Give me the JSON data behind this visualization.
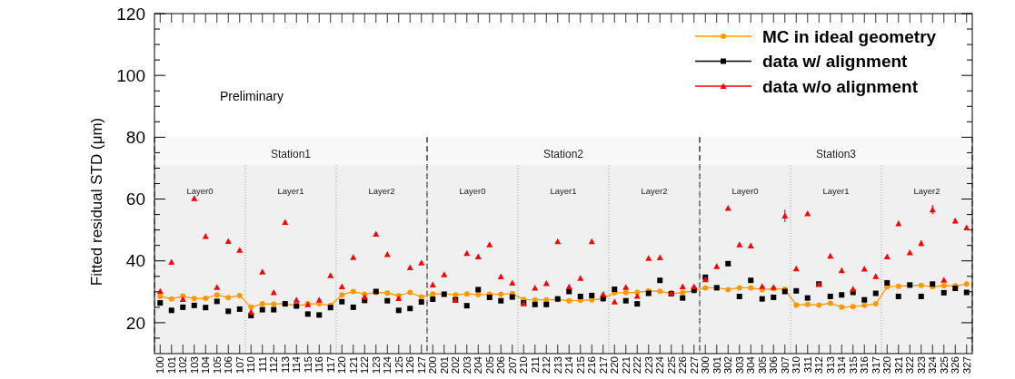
{
  "chart_data": {
    "type": "line",
    "ylabel": "Fitted residual STD (μm)",
    "categories": [
      "100",
      "101",
      "102",
      "103",
      "104",
      "105",
      "106",
      "107",
      "110",
      "111",
      "112",
      "113",
      "114",
      "115",
      "116",
      "117",
      "120",
      "121",
      "122",
      "123",
      "124",
      "125",
      "126",
      "127",
      "200",
      "201",
      "202",
      "203",
      "204",
      "205",
      "206",
      "207",
      "210",
      "211",
      "212",
      "213",
      "214",
      "215",
      "216",
      "217",
      "220",
      "221",
      "222",
      "223",
      "224",
      "225",
      "226",
      "227",
      "300",
      "301",
      "302",
      "303",
      "304",
      "305",
      "306",
      "307",
      "310",
      "311",
      "312",
      "313",
      "314",
      "315",
      "316",
      "317",
      "320",
      "321",
      "322",
      "323",
      "324",
      "325",
      "326",
      "327"
    ],
    "series": [
      {
        "name": "MC in ideal geometry",
        "marker": "circle",
        "color": "#ff9900",
        "values": [
          28.5,
          27.7,
          28.6,
          27.8,
          27.9,
          29.0,
          28.1,
          28.8,
          25.0,
          26.1,
          26.0,
          26.2,
          25.4,
          26.1,
          26.1,
          25.6,
          29.0,
          30.1,
          29.2,
          29.8,
          29.6,
          28.7,
          29.8,
          28.3,
          29.3,
          29.3,
          29.0,
          29.3,
          29.1,
          29.2,
          29.2,
          29.4,
          27.5,
          27.4,
          27.4,
          27.5,
          27.1,
          27.2,
          27.4,
          27.7,
          29.7,
          29.7,
          29.8,
          30.3,
          30.2,
          29.4,
          29.8,
          30.3,
          31.3,
          31.3,
          30.7,
          31.3,
          31.3,
          30.7,
          31.0,
          30.8,
          25.7,
          25.9,
          25.7,
          26.3,
          25.0,
          25.2,
          25.6,
          26.1,
          31.6,
          31.8,
          32.0,
          32.1,
          31.6,
          32.0,
          31.9,
          32.5
        ]
      },
      {
        "name": "data w/ alignment",
        "type": "scatter",
        "marker": "square",
        "color": "#000000",
        "values": [
          26.4,
          24.0,
          25.0,
          25.6,
          24.9,
          26.9,
          23.7,
          24.4,
          22.3,
          24.2,
          24.2,
          26.1,
          25.4,
          22.8,
          22.5,
          24.9,
          26.8,
          25.0,
          27.2,
          30.1,
          27.1,
          24.0,
          24.6,
          26.7,
          27.6,
          29.2,
          27.4,
          25.5,
          30.7,
          28.2,
          27.1,
          28.3,
          26.4,
          25.9,
          25.9,
          27.7,
          30.1,
          28.5,
          28.8,
          27.8,
          30.8,
          27.1,
          26.1,
          29.5,
          33.7,
          29.4,
          28.0,
          30.5,
          34.7,
          31.3,
          39.1,
          28.5,
          33.7,
          27.7,
          28.2,
          30.1,
          30.3,
          28.0,
          32.5,
          28.5,
          29.0,
          29.8,
          27.4,
          29.5,
          32.9,
          28.5,
          32.2,
          28.5,
          32.5,
          29.7,
          31.1,
          29.8
        ]
      },
      {
        "name": "data w/o alignment",
        "type": "scatter",
        "marker": "triangle",
        "color": "#ff0000",
        "values": [
          30.2,
          39.6,
          27.6,
          60.2,
          48.0,
          31.5,
          46.4,
          43.5,
          23.5,
          36.5,
          29.8,
          52.5,
          27.4,
          25.9,
          27.4,
          35.3,
          31.7,
          41.2,
          28.3,
          48.7,
          42.1,
          27.9,
          37.9,
          39.4,
          32.3,
          35.6,
          27.4,
          42.5,
          41.4,
          45.3,
          34.9,
          32.9,
          26.2,
          31.3,
          32.7,
          46.3,
          31.6,
          34.4,
          46.3,
          29.2,
          26.8,
          31.5,
          28.6,
          40.9,
          41.1,
          29.6,
          31.7,
          31.7,
          34.0,
          38.2,
          57.1,
          45.3,
          44.9,
          31.8,
          31.5,
          54.6,
          37.5,
          55.3,
          32.5,
          41.6,
          36.9,
          30.9,
          37.4,
          35.0,
          41.4,
          52.1,
          42.7,
          45.7,
          56.6,
          33.8,
          53.0,
          50.8
        ],
        "errors": [
          null,
          null,
          null,
          0.8,
          null,
          null,
          null,
          null,
          null,
          null,
          null,
          null,
          null,
          null,
          null,
          null,
          null,
          null,
          null,
          null,
          null,
          null,
          null,
          null,
          null,
          null,
          null,
          null,
          null,
          null,
          null,
          null,
          null,
          null,
          null,
          null,
          null,
          null,
          null,
          null,
          null,
          null,
          null,
          null,
          null,
          null,
          null,
          null,
          null,
          null,
          null,
          null,
          null,
          null,
          null,
          2,
          null,
          null,
          null,
          null,
          null,
          null,
          null,
          null,
          null,
          null,
          null,
          1,
          1.5,
          null,
          0.8,
          null
        ]
      }
    ],
    "ylim": [
      10,
      120
    ],
    "yticks": [
      {
        "value": 15,
        "label": null
      },
      20,
      {
        "value": 25,
        "label": null
      },
      {
        "value": 30,
        "label": null
      },
      {
        "value": 35,
        "label": null
      },
      40,
      {
        "value": 45,
        "label": null
      },
      {
        "value": 50,
        "label": null
      },
      {
        "value": 55,
        "label": null
      },
      60,
      {
        "value": 65,
        "label": null
      },
      {
        "value": 70,
        "label": null
      },
      {
        "value": 75,
        "label": null
      },
      80,
      {
        "value": 85,
        "label": null
      },
      {
        "value": 90,
        "label": null
      },
      {
        "value": 95,
        "label": null
      },
      100,
      {
        "value": 105,
        "label": null
      },
      {
        "value": 110,
        "label": null
      },
      {
        "value": 115,
        "label": null
      },
      120
    ],
    "bands": [
      {
        "axis": "x",
        "from": "100",
        "to": "127",
        "label": "Station1",
        "color": "#555555"
      },
      {
        "axis": "x",
        "from": "200",
        "to": "227",
        "label": "Station2",
        "color": "#555555"
      },
      {
        "axis": "x",
        "from": "300",
        "to": "327",
        "label": "Station3",
        "color": "#555555"
      },
      {
        "axis": "x",
        "from": "100",
        "to": "107",
        "label": "Layer0",
        "color": "#bbbbbb"
      },
      {
        "axis": "x",
        "from": "110",
        "to": "117",
        "label": "Layer1",
        "color": "#bbbbbb"
      },
      {
        "axis": "x",
        "from": "120",
        "to": "127",
        "label": "Layer2",
        "color": "#bbbbbb"
      },
      {
        "axis": "x",
        "from": "200",
        "to": "207",
        "label": "Layer0",
        "color": "#bbbbbb"
      },
      {
        "axis": "x",
        "from": "210",
        "to": "217",
        "label": "Layer1",
        "color": "#bbbbbb"
      },
      {
        "axis": "x",
        "from": "220",
        "to": "227",
        "label": "Layer2",
        "color": "#bbbbbb"
      },
      {
        "axis": "x",
        "from": "300",
        "to": "307",
        "label": "Layer0",
        "color": "#bbbbbb"
      },
      {
        "axis": "x",
        "from": "310",
        "to": "317",
        "label": "Layer1",
        "color": "#bbbbbb"
      },
      {
        "axis": "x",
        "from": "320",
        "to": "327",
        "label": "Layer2",
        "color": "#bbbbbb"
      }
    ],
    "annotations": [
      "Preliminary"
    ],
    "legend": "top right",
    "grid": false
  }
}
